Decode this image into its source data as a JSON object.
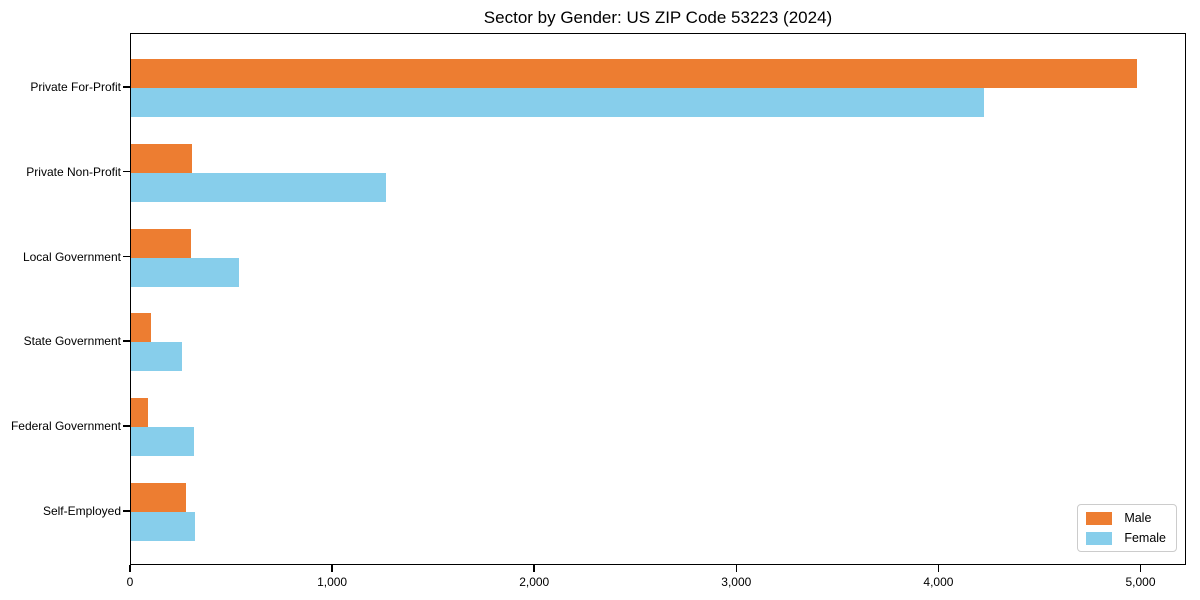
{
  "chart_data": {
    "type": "bar",
    "orientation": "horizontal",
    "title": "Sector by Gender: US ZIP Code 53223 (2024)",
    "categories": [
      "Private For-Profit",
      "Private Non-Profit",
      "Local Government",
      "State Government",
      "Federal Government",
      "Self-Employed"
    ],
    "series": [
      {
        "name": "Male",
        "color": "#ED7D31",
        "values": [
          4975,
          300,
          295,
          100,
          85,
          270
        ]
      },
      {
        "name": "Female",
        "color": "#87CEEB",
        "values": [
          4220,
          1260,
          535,
          250,
          310,
          315
        ]
      }
    ],
    "xlabel": "",
    "ylabel": "",
    "x_ticks": [
      0,
      1000,
      2000,
      3000,
      4000,
      5000
    ],
    "x_tick_labels": [
      "0",
      "1,000",
      "2,000",
      "3,000",
      "4,000",
      "5,000"
    ],
    "xlim": [
      0,
      5225
    ],
    "grid": false,
    "legend_position": "lower right",
    "legend_entries": [
      "Male",
      "Female"
    ]
  }
}
